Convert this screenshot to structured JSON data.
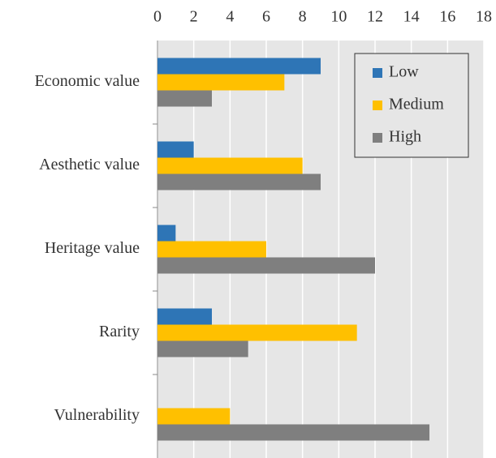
{
  "chart_data": {
    "type": "hbar",
    "categories": [
      "Economic value",
      "Aesthetic value",
      "Heritage value",
      "Rarity",
      "Vulnerability"
    ],
    "series": [
      {
        "name": "Low",
        "color": "#2e75b6",
        "values": [
          9,
          2,
          1,
          3,
          0
        ]
      },
      {
        "name": "Medium",
        "color": "#ffc000",
        "values": [
          7,
          8,
          6,
          11,
          4
        ]
      },
      {
        "name": "High",
        "color": "#7f7f7f",
        "values": [
          3,
          9,
          12,
          5,
          15
        ]
      }
    ],
    "xlim": [
      0,
      18
    ],
    "xticks": [
      0,
      2,
      4,
      6,
      8,
      10,
      12,
      14,
      16,
      18
    ],
    "grid": true,
    "legend": "top-right"
  }
}
